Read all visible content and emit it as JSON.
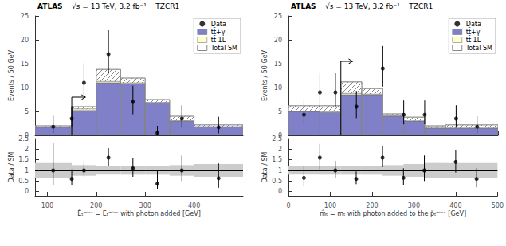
{
  "chart_data": [
    {
      "type": "histogram",
      "ylabel": "Events / 50 GeV",
      "annotations": [
        "ATLAS",
        "√s = 13 TeV, 3.2 fb⁻¹",
        "TZCR1"
      ],
      "bins": [
        75,
        150,
        200,
        250,
        300,
        350,
        400,
        500
      ],
      "xlim": [
        75,
        500
      ],
      "xticks": [
        100,
        200,
        300,
        400
      ],
      "ylim": [
        0,
        25
      ],
      "yticks": [
        0,
        5,
        10,
        15,
        20,
        25
      ],
      "tick_labels": "y",
      "grid": false,
      "legend": "upper right",
      "stacked": true,
      "series": [
        {
          "name": "Data",
          "type": "scatter",
          "color": "black",
          "marker": "circle",
          "x": [
            112,
            150,
            175,
            225,
            275,
            325,
            375,
            450
          ],
          "values": [
            1.8,
            3.5,
            11.0,
            17.0,
            7.0,
            0.5,
            3.5,
            1.7
          ],
          "yerr_lo": [
            1.3,
            1.8,
            3.3,
            4.1,
            2.6,
            0.4,
            1.9,
            1.3
          ],
          "yerr_hi": [
            2.3,
            2.6,
            4.1,
            5.0,
            3.4,
            1.5,
            2.8,
            2.2
          ]
        },
        {
          "name": "tt̄+γ",
          "type": "bar",
          "color": "#8080c8",
          "values": [
            1.7,
            5.2,
            11.0,
            10.8,
            6.8,
            3.0,
            1.8
          ]
        },
        {
          "name": "tt̄ 1L",
          "type": "bar",
          "color": "#ffffcc",
          "values": [
            0.05,
            0.35,
            0.3,
            0.2,
            0.1,
            0.08,
            0.05
          ]
        },
        {
          "name": "Total SM",
          "type": "hatched",
          "color": "#888888",
          "values": [
            2.0,
            6.0,
            13.8,
            12.0,
            7.5,
            4.0,
            2.2
          ]
        }
      ],
      "arrow": {
        "x": 150,
        "y": 8.0,
        "dx": 28
      }
    },
    {
      "type": "ratio",
      "xlabel": "Ẽₜᵐⁱˢˢ = Eₜᵐⁱˢˢ with photon added [GeV]",
      "ylabel": "Data / SM",
      "bins": [
        75,
        150,
        200,
        250,
        300,
        350,
        400,
        500
      ],
      "xlim": [
        75,
        500
      ],
      "xticks": [
        100,
        200,
        300,
        400
      ],
      "ylim": [
        -0.2,
        2.5
      ],
      "yticks": [
        0,
        0.5,
        1,
        1.5,
        2,
        2.5
      ],
      "grid": false,
      "reference": 1.0,
      "series": [
        {
          "type": "band",
          "color": "#cccccc",
          "band_lo": [
            0.35,
            0.25,
            0.2,
            0.2,
            0.2,
            0.25,
            0.3
          ],
          "band_hi": [
            0.35,
            0.25,
            0.2,
            0.2,
            0.2,
            0.25,
            0.3
          ]
        },
        {
          "type": "scatter",
          "color": "black",
          "marker": "circle",
          "x": [
            112,
            150,
            175,
            225,
            275,
            325,
            375,
            450
          ],
          "values": [
            1.0,
            0.6,
            1.0,
            1.6,
            1.1,
            0.37,
            1.0,
            0.63
          ],
          "yerr_lo": [
            0.7,
            0.3,
            0.3,
            0.4,
            0.4,
            0.27,
            0.5,
            0.45
          ],
          "yerr_hi": [
            1.3,
            0.45,
            0.38,
            0.45,
            0.5,
            0.65,
            0.7,
            0.7
          ]
        }
      ]
    },
    {
      "type": "histogram",
      "ylabel": "Events / 50 GeV",
      "annotations": [
        "ATLAS",
        "√s = 13 TeV, 3.2 fb⁻¹",
        "TZCR1"
      ],
      "bins": [
        0,
        75,
        125,
        175,
        225,
        275,
        325,
        375,
        500
      ],
      "xlim": [
        0,
        500
      ],
      "xticks": [
        0,
        100,
        200,
        300,
        400,
        500
      ],
      "ylim": [
        0,
        25
      ],
      "yticks": [
        0,
        5,
        10,
        15,
        20,
        25
      ],
      "tick_labels": "y",
      "grid": false,
      "legend": "upper right",
      "stacked": true,
      "series": [
        {
          "name": "Data",
          "type": "scatter",
          "color": "black",
          "marker": "circle",
          "x": [
            37,
            75,
            112,
            162,
            225,
            275,
            325,
            400,
            450
          ],
          "values": [
            4.3,
            9.0,
            9.0,
            6.0,
            14.0,
            4.3,
            4.3,
            3.5,
            1.8
          ],
          "yerr_lo": [
            2.0,
            3.0,
            3.0,
            2.4,
            3.8,
            2.0,
            2.0,
            1.9,
            1.3
          ],
          "yerr_hi": [
            3.0,
            4.0,
            4.0,
            3.3,
            4.7,
            3.0,
            3.0,
            2.8,
            2.2
          ]
        },
        {
          "name": "tt̄+γ",
          "type": "bar",
          "color": "#8080c8",
          "values": [
            5.0,
            4.8,
            8.5,
            8.5,
            4.0,
            3.0,
            1.5,
            1.5
          ]
        },
        {
          "name": "tt̄ 1L",
          "type": "bar",
          "color": "#ffffcc",
          "values": [
            0.05,
            0.1,
            0.3,
            0.15,
            0.1,
            0.05,
            0.05,
            0.05
          ]
        },
        {
          "name": "Total SM",
          "type": "hatched",
          "color": "#888888",
          "values": [
            6.2,
            6.2,
            11.2,
            9.8,
            4.5,
            3.8,
            2.0,
            2.2
          ]
        }
      ],
      "arrow": {
        "x": 125,
        "y": 15.5,
        "dx": 28
      }
    },
    {
      "type": "ratio",
      "xlabel": "m̂ₜ = mₜ with photon added to the p̃ₜᵐⁱˢˢ [GeV]",
      "ylabel": "Data / SM",
      "bins": [
        0,
        75,
        125,
        175,
        225,
        275,
        325,
        375,
        500
      ],
      "xlim": [
        0,
        500
      ],
      "xticks": [
        0,
        100,
        200,
        300,
        400,
        500
      ],
      "ylim": [
        -0.2,
        2.5
      ],
      "yticks": [
        0,
        0.5,
        1,
        1.5,
        2,
        2.5
      ],
      "grid": false,
      "reference": 1.0,
      "series": [
        {
          "type": "band",
          "color": "#cccccc",
          "band_lo": [
            0.2,
            0.2,
            0.2,
            0.2,
            0.25,
            0.3,
            0.35,
            0.35
          ],
          "band_hi": [
            0.2,
            0.2,
            0.2,
            0.2,
            0.25,
            0.3,
            0.35,
            0.35
          ]
        },
        {
          "type": "scatter",
          "color": "black",
          "marker": "circle",
          "x": [
            37,
            75,
            112,
            162,
            225,
            275,
            325,
            400,
            450
          ],
          "values": [
            0.65,
            1.6,
            1.0,
            0.6,
            1.6,
            0.65,
            1.0,
            1.4,
            0.6
          ],
          "yerr_lo": [
            0.4,
            0.55,
            0.35,
            0.25,
            0.45,
            0.33,
            0.5,
            0.5,
            0.4
          ],
          "yerr_hi": [
            0.55,
            0.65,
            0.45,
            0.35,
            0.55,
            0.45,
            0.7,
            0.55,
            0.5
          ]
        }
      ]
    }
  ]
}
